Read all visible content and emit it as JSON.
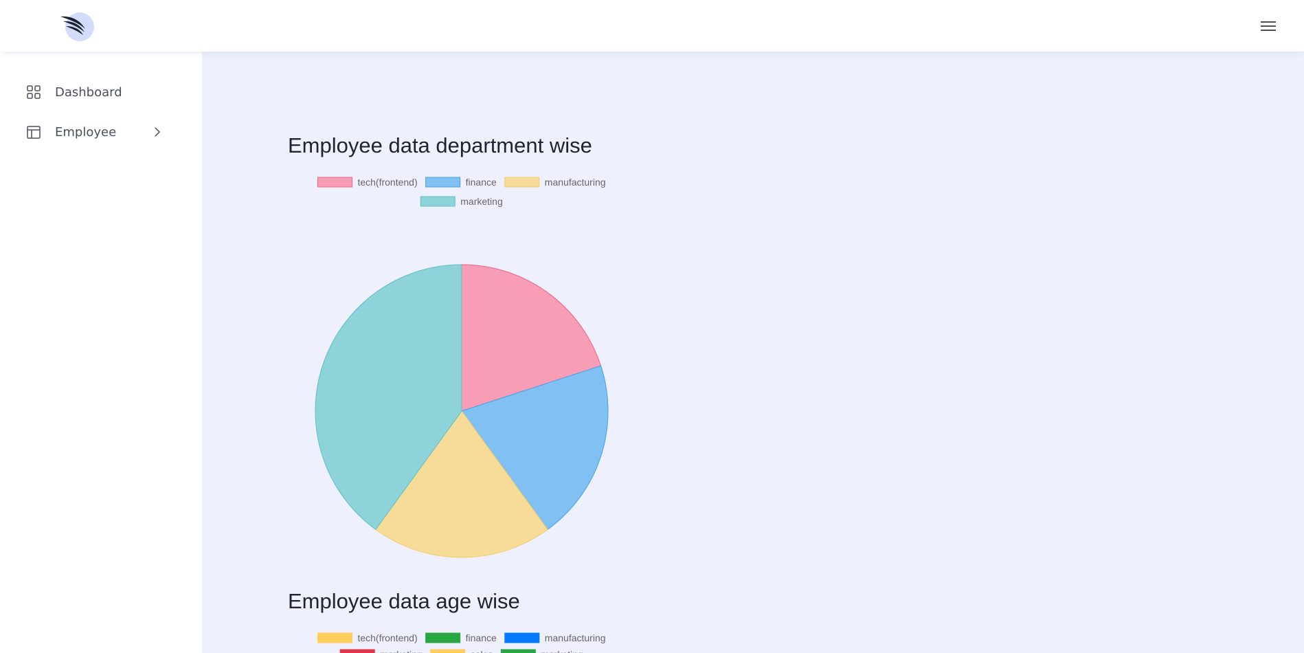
{
  "nav": {
    "items": [
      {
        "label": "Dashboard",
        "icon": "grid-icon"
      },
      {
        "label": "Employee",
        "icon": "table-layout-icon",
        "has_submenu": true
      }
    ]
  },
  "colors": {
    "page_bg": "#eef1fd",
    "sidebar_bg": "#ffffff",
    "topbar_bg": "#ffffff",
    "logo_circle": "#d4dcfb"
  },
  "charts": {
    "department": {
      "title": "Employee data department wise",
      "chart_data": {
        "type": "pie",
        "legend_position": "top",
        "slices": [
          {
            "label": "tech(frontend)",
            "value": 1,
            "color": "#f79db6",
            "border": "#f06385"
          },
          {
            "label": "finance",
            "value": 1,
            "color": "#80c0f2",
            "border": "#45a3e6"
          },
          {
            "label": "manufacturing",
            "value": 1,
            "color": "#f7dc99",
            "border": "#f2cc66"
          },
          {
            "label": "marketing",
            "value": 2,
            "color": "#8dd3d9",
            "border": "#5ebfc5"
          }
        ]
      }
    },
    "age": {
      "title": "Employee data age wise",
      "chart_data": {
        "type": "pie",
        "legend_position": "top",
        "legend": [
          {
            "label": "tech(frontend)",
            "color": "#ffcc59"
          },
          {
            "label": "finance",
            "color": "#28a745"
          },
          {
            "label": "manufacturing",
            "color": "#007bff"
          },
          {
            "label": "marketing",
            "color": "#dc3545"
          },
          {
            "label": "sales",
            "color": "#ffcc59"
          },
          {
            "label": "marketing",
            "color": "#28a745"
          }
        ]
      }
    }
  }
}
